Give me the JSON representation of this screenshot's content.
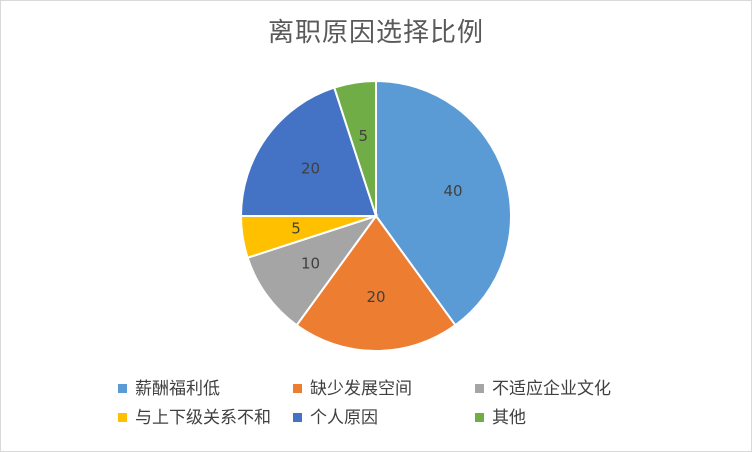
{
  "chart_data": {
    "type": "pie",
    "title": "离职原因选择比例",
    "legend_position": "bottom",
    "slices": [
      {
        "label": "薪酬福利低",
        "value": 40,
        "color": "#5b9bd5"
      },
      {
        "label": "缺少发展空间",
        "value": 20,
        "color": "#ed7d31"
      },
      {
        "label": "不适应企业文化",
        "value": 10,
        "color": "#a5a5a5"
      },
      {
        "label": "与上下级关系不和",
        "value": 5,
        "color": "#ffc000"
      },
      {
        "label": "个人原因",
        "value": 20,
        "color": "#4472c4"
      },
      {
        "label": "其他",
        "value": 5,
        "color": "#70ad47"
      }
    ]
  }
}
